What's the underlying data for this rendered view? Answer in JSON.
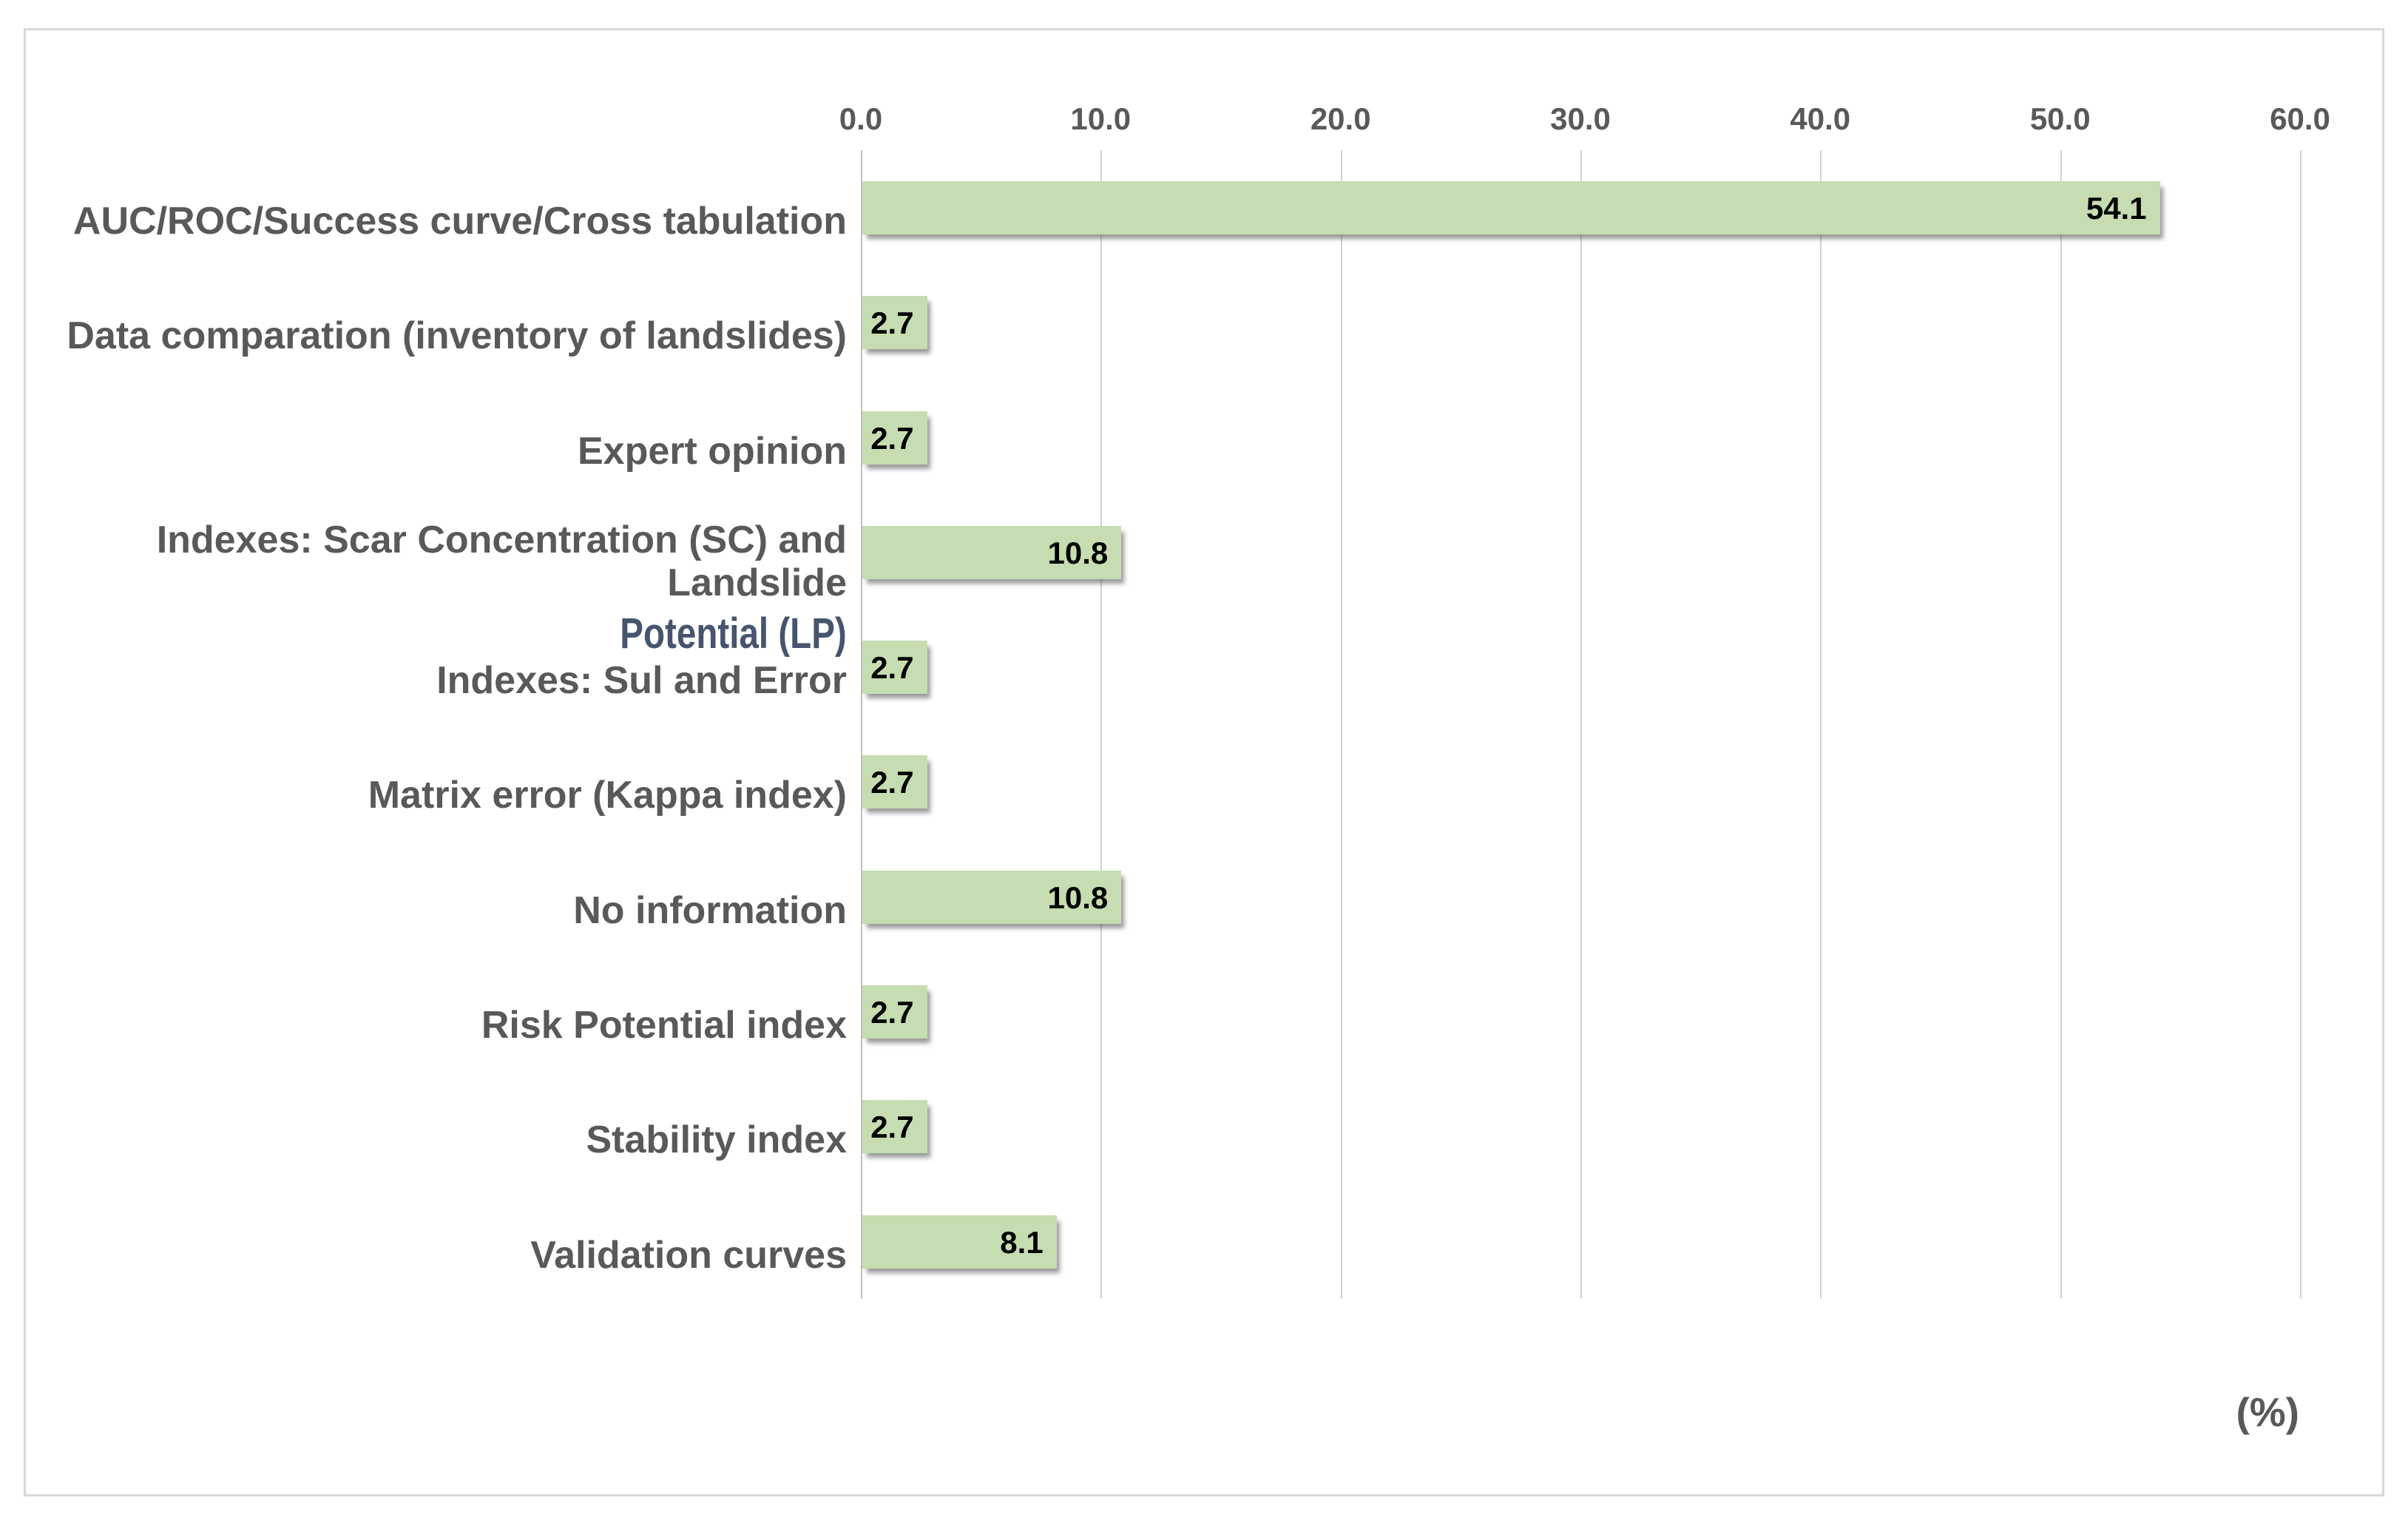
{
  "chart_data": {
    "type": "bar",
    "orientation": "horizontal",
    "title": "",
    "xlabel": "(%)",
    "ylabel": "",
    "xlim": [
      0,
      60
    ],
    "x_ticks": [
      "0.0",
      "10.0",
      "20.0",
      "30.0",
      "40.0",
      "50.0",
      "60.0"
    ],
    "grid": true,
    "legend": false,
    "bar_color": "#c5ddb1",
    "categories": [
      "AUC/ROC/Success curve/Cross tabulation",
      "Data comparation (inventory of landslides)",
      "Expert opinion",
      "Indexes: Scar Concentration (SC) and Landslide Potential (LP)",
      "Indexes: Sul and Error",
      "Matrix error (Kappa index)",
      "No information",
      "Risk Potential index",
      "Stability index",
      "Validation curves"
    ],
    "values": [
      54.1,
      2.7,
      2.7,
      10.8,
      2.7,
      2.7,
      10.8,
      2.7,
      2.7,
      8.1
    ],
    "rows": [
      {
        "label": "AUC/ROC/Success curve/Cross tabulation",
        "value": 54.1,
        "value_label": "54.1"
      },
      {
        "label": "Data comparation (inventory of landslides)",
        "value": 2.7,
        "value_label": "2.7"
      },
      {
        "label": "Expert opinion",
        "value": 2.7,
        "value_label": "2.7"
      },
      {
        "label": "Indexes: Scar Concentration (SC) and Landslide",
        "label2": "Potential (LP)",
        "value": 10.8,
        "value_label": "10.8"
      },
      {
        "label": "Indexes: Sul and Error",
        "value": 2.7,
        "value_label": "2.7"
      },
      {
        "label": "Matrix error (Kappa index)",
        "value": 2.7,
        "value_label": "2.7"
      },
      {
        "label": "No information",
        "value": 10.8,
        "value_label": "10.8"
      },
      {
        "label": "Risk Potential index",
        "value": 2.7,
        "value_label": "2.7"
      },
      {
        "label": "Stability index",
        "value": 2.7,
        "value_label": "2.7"
      },
      {
        "label": "Validation curves",
        "value": 8.1,
        "value_label": "8.1"
      }
    ],
    "colors": {
      "bar_green": "#c5ddb1",
      "category_text": "#595959",
      "category_line2_text": "#47546e",
      "tick_text": "#595959",
      "value_text": "#000000",
      "gridline": "#d4d4d4",
      "frame_border": "#d9d9d9"
    }
  }
}
